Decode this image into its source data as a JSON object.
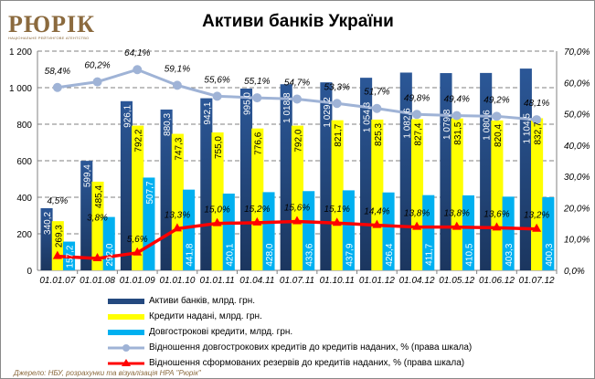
{
  "logo": {
    "name": "РЮРІК",
    "subtitle": "НАЦІОНАЛЬНЕ РЕЙТИНГОВЕ АГЕНТСТВО"
  },
  "source": "Джерело: НБУ, розрахунки та візуалізація НРА \"Рюрік\"",
  "colors": {
    "assets": "#24497f",
    "loans": "#ffff00",
    "longterm": "#00b0f0",
    "ratio_long": "#9fb3d6",
    "ratio_reserve": "#ff0000"
  },
  "chart_data": {
    "type": "bar",
    "title": "Активи банків України",
    "categories": [
      "01.01.07",
      "01.01.08",
      "01.01.09",
      "01.01.10",
      "01.01.11",
      "01.04.11",
      "01.07.11",
      "01.10.11",
      "01.01.12",
      "01.04.12",
      "01.05.12",
      "01.06.12",
      "01.07.12"
    ],
    "series": [
      {
        "name": "Активи банків, млрд. грн.",
        "type": "bar",
        "axis": "left",
        "values": [
          340.2,
          599.4,
          926.1,
          880.3,
          942.1,
          995.0,
          1018.8,
          1029.2,
          1054.3,
          1082.6,
          1079.8,
          1080.6,
          1104.5
        ],
        "labels": [
          "340,2",
          "599,4",
          "926,1",
          "880,3",
          "942,1",
          "995,0",
          "1 018,8",
          "1 029,2",
          "1 054,3",
          "1 082,6",
          "1 079,8",
          "1 080,6",
          "1 104,5"
        ]
      },
      {
        "name": "Кредити надані, млрд. грн.",
        "type": "bar",
        "axis": "left",
        "values": [
          269.3,
          485.4,
          792.2,
          747.3,
          755.0,
          776.6,
          792.0,
          821.7,
          825.3,
          827.4,
          831.5,
          820.4,
          832.7
        ],
        "labels": [
          "269,3",
          "485,4",
          "792,2",
          "747,3",
          "755,0",
          "776,6",
          "792,0",
          "821,7",
          "825,3",
          "827,4",
          "831,5",
          "820,4",
          "832,7"
        ]
      },
      {
        "name": "Довгострокові кредити, млрд. грн.",
        "type": "bar",
        "axis": "left",
        "values": [
          157.2,
          292.0,
          507.7,
          441.8,
          420.1,
          428.0,
          433.6,
          437.9,
          426.4,
          411.7,
          410.5,
          403.3,
          400.3
        ],
        "labels": [
          "157,2",
          "292,0",
          "507,7",
          "441,8",
          "420,1",
          "428,0",
          "433,6",
          "437,9",
          "426,4",
          "411,7",
          "410,5",
          "403,3",
          "400,3"
        ]
      },
      {
        "name": "Відношення довгострокових кредитів до кредитів наданих, % (права шкала)",
        "type": "line",
        "axis": "right",
        "values": [
          58.4,
          60.2,
          64.1,
          59.1,
          55.6,
          55.1,
          54.7,
          53.3,
          51.7,
          49.8,
          49.4,
          49.2,
          48.1
        ],
        "labels": [
          "58,4%",
          "60,2%",
          "64,1%",
          "59,1%",
          "55,6%",
          "55,1%",
          "54,7%",
          "53,3%",
          "51,7%",
          "49,8%",
          "49,4%",
          "49,2%",
          "48,1%"
        ]
      },
      {
        "name": "Відношення сформованих резервів до кредитів наданих, % (права шкала)",
        "type": "line",
        "axis": "right",
        "values": [
          4.5,
          3.8,
          5.6,
          13.3,
          15.0,
          15.2,
          15.6,
          15.1,
          14.4,
          13.8,
          13.8,
          13.6,
          13.2
        ],
        "labels": [
          "4,5%",
          "3,8%",
          "5,6%",
          "13,3%",
          "15,0%",
          "15,2%",
          "15,6%",
          "15,1%",
          "14,4%",
          "13,8%",
          "13,8%",
          "13,6%",
          "13,2%"
        ]
      }
    ],
    "y_left": {
      "range": [
        0,
        1200
      ],
      "ticks": [
        "0",
        "200",
        "400",
        "600",
        "800",
        "1 000",
        "1 200"
      ]
    },
    "y_right": {
      "range": [
        0,
        70
      ],
      "ticks": [
        "0,0%",
        "10,0%",
        "20,0%",
        "30,0%",
        "40,0%",
        "50,0%",
        "60,0%",
        "70,0%"
      ]
    },
    "grid": true,
    "legend_position": "bottom"
  }
}
